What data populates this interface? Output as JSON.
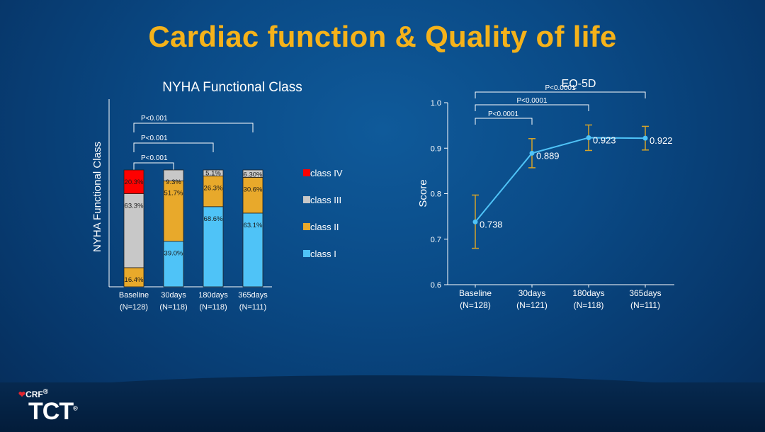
{
  "slide": {
    "title": "Cardiac function & Quality of life"
  },
  "logos": {
    "crf": "CRF",
    "crf_mark": "®",
    "tct": "TCT",
    "tct_mark": "®"
  },
  "colors": {
    "title": "#f5b21a",
    "class_iv": "#ff0000",
    "class_iii": "#c8c8c8",
    "class_ii": "#e8a92b",
    "class_i": "#4fc3f7",
    "eq_line": "#4fc3f7",
    "error_bar": "#d4a32a"
  },
  "chart_data": [
    {
      "type": "bar",
      "stacked": true,
      "title": "NYHA Functional Class",
      "ylabel": "NYHA Functional Class",
      "xlabel": "",
      "categories": [
        "Baseline",
        "30days",
        "180days",
        "365days"
      ],
      "category_n": [
        "(N=128)",
        "(N=118)",
        "(N=118)",
        "(N=111)"
      ],
      "series": [
        {
          "name": "class I",
          "values": [
            0,
            39.0,
            68.6,
            63.1
          ],
          "labels": [
            "",
            "39.0%",
            "68.6%",
            "63.1%"
          ]
        },
        {
          "name": "class II",
          "values": [
            16.4,
            51.7,
            26.3,
            30.6
          ],
          "labels": [
            "16.4%",
            "51.7%",
            "26.3%",
            "30.6%"
          ]
        },
        {
          "name": "class III",
          "values": [
            63.3,
            9.3,
            5.1,
            6.3
          ],
          "labels": [
            "63.3%",
            "9.3%",
            "5.1%",
            "6.30%"
          ]
        },
        {
          "name": "class IV",
          "values": [
            20.3,
            0,
            0,
            0
          ],
          "labels": [
            "20.3%",
            "",
            "",
            ""
          ]
        }
      ],
      "legend": [
        "class IV",
        "class III",
        "class II",
        "class I"
      ],
      "legend_position": "right",
      "ylim": [
        0,
        100
      ],
      "annotations": [
        {
          "text": "P<0.001",
          "from": "Baseline",
          "to": "30days"
        },
        {
          "text": "P<0.001",
          "from": "Baseline",
          "to": "180days"
        },
        {
          "text": "P<0.001",
          "from": "Baseline",
          "to": "365days"
        }
      ]
    },
    {
      "type": "line",
      "title": "EQ-5D",
      "ylabel": "Score",
      "xlabel": "",
      "categories": [
        "Baseline",
        "30days",
        "180days",
        "365days"
      ],
      "category_n": [
        "(N=128)",
        "(N=121)",
        "(N=118)",
        "(N=111)"
      ],
      "values": [
        0.738,
        0.889,
        0.923,
        0.922
      ],
      "value_labels": [
        "0.738",
        "0.889",
        "0.923",
        "0.922"
      ],
      "error_low": [
        0.68,
        0.857,
        0.895,
        0.896
      ],
      "error_high": [
        0.797,
        0.921,
        0.951,
        0.948
      ],
      "ylim": [
        0.6,
        1.0
      ],
      "yticks": [
        0.6,
        0.7,
        0.8,
        0.9,
        1.0
      ],
      "ytick_labels": [
        "0.6",
        "0.7",
        "0.8",
        "0.9",
        "1.0"
      ],
      "annotations": [
        {
          "text": "P<0.0001",
          "from": "Baseline",
          "to": "30days"
        },
        {
          "text": "P<0.0001",
          "from": "Baseline",
          "to": "180days"
        },
        {
          "text": "P<0.0001",
          "from": "Baseline",
          "to": "365days"
        }
      ]
    }
  ]
}
